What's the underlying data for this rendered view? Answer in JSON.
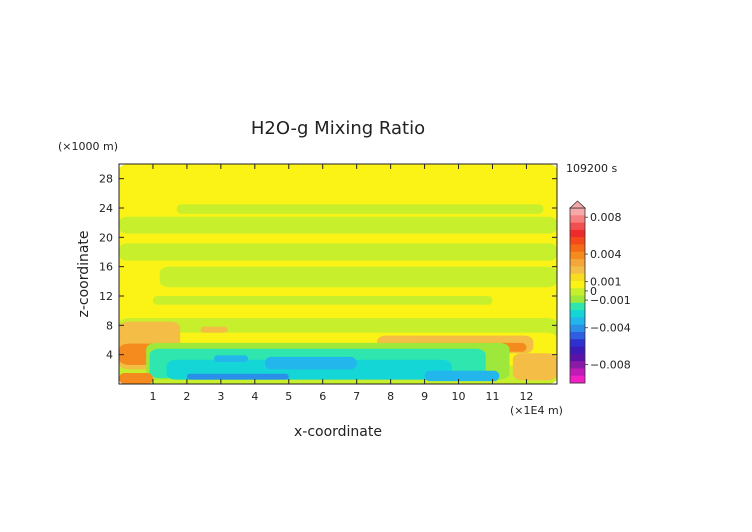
{
  "chart_data": {
    "type": "heatmap",
    "title": "H2O-g Mixing Ratio",
    "xlabel": "x-coordinate",
    "ylabel": "z-coordinate",
    "x_unit_label": "(×1E4 m)",
    "y_unit_label": "(×1000 m)",
    "time_label": "109200 s",
    "xlim": [
      0,
      12.9
    ],
    "ylim": [
      0,
      30
    ],
    "x_ticks": [
      1,
      2,
      3,
      4,
      5,
      6,
      7,
      8,
      9,
      10,
      11,
      12
    ],
    "y_ticks": [
      4,
      8,
      12,
      16,
      20,
      24,
      28
    ],
    "colorbar": {
      "labels": [
        {
          "value": 0.008,
          "text": "0.008"
        },
        {
          "value": 0.004,
          "text": "0.004"
        },
        {
          "value": 0.001,
          "text": "0.001"
        },
        {
          "value": 0,
          "text": "0"
        },
        {
          "value": -0.001,
          "text": "−0.001"
        },
        {
          "value": -0.004,
          "text": "−0.004"
        },
        {
          "value": -0.008,
          "text": "−0.008"
        }
      ],
      "levels": [
        {
          "value": 0.009,
          "color": "#f7a9a9"
        },
        {
          "value": 0.008,
          "color": "#f58080"
        },
        {
          "value": 0.007,
          "color": "#f25050"
        },
        {
          "value": 0.006,
          "color": "#ee2b2b"
        },
        {
          "value": 0.005,
          "color": "#f44a1a"
        },
        {
          "value": 0.004,
          "color": "#f56a14"
        },
        {
          "value": 0.003,
          "color": "#f58a1e"
        },
        {
          "value": 0.002,
          "color": "#f4a63a"
        },
        {
          "value": 0.0015,
          "color": "#f4bd45"
        },
        {
          "value": 0.001,
          "color": "#f8dc20"
        },
        {
          "value": 0.0005,
          "color": "#fbf316"
        },
        {
          "value": 0,
          "color": "#c7ef2c"
        },
        {
          "value": -0.0005,
          "color": "#9de83a"
        },
        {
          "value": -0.001,
          "color": "#2ee6ae"
        },
        {
          "value": -0.0015,
          "color": "#15d6d6"
        },
        {
          "value": -0.002,
          "color": "#22b6ec"
        },
        {
          "value": -0.003,
          "color": "#2a8fe8"
        },
        {
          "value": -0.004,
          "color": "#2f5fe0"
        },
        {
          "value": -0.005,
          "color": "#2f30d0"
        },
        {
          "value": -0.006,
          "color": "#3b1ab8"
        },
        {
          "value": -0.007,
          "color": "#5a13a8"
        },
        {
          "value": -0.008,
          "color": "#8a1aa8"
        },
        {
          "value": -0.009,
          "color": "#c21ab8"
        },
        {
          "value": -0.01,
          "color": "#f11fc6"
        }
      ]
    },
    "regions": [
      {
        "shape": "band",
        "x": [
          0,
          12.9
        ],
        "z": [
          0,
          30
        ],
        "value": 0.0005
      },
      {
        "shape": "band",
        "x": [
          1.7,
          12.5
        ],
        "z": [
          23.2,
          24.5
        ],
        "value": 0
      },
      {
        "shape": "band",
        "x": [
          0,
          12.9
        ],
        "z": [
          20.5,
          22.8
        ],
        "value": 0
      },
      {
        "shape": "band",
        "x": [
          0,
          12.9
        ],
        "z": [
          16.8,
          19.2
        ],
        "value": 0
      },
      {
        "shape": "band",
        "x": [
          1.2,
          12.9
        ],
        "z": [
          13.2,
          16.0
        ],
        "value": 0
      },
      {
        "shape": "band",
        "x": [
          0,
          12.9
        ],
        "z": [
          0,
          9.0
        ],
        "value": 0
      },
      {
        "shape": "band",
        "x": [
          1.0,
          11.0
        ],
        "z": [
          10.8,
          12.0
        ],
        "value": 0
      },
      {
        "shape": "band",
        "x": [
          1.5,
          12.9
        ],
        "z": [
          2.5,
          7.0
        ],
        "value": 0.0005
      },
      {
        "shape": "band",
        "x": [
          0,
          1.8
        ],
        "z": [
          2.0,
          8.5
        ],
        "value": 0.0015
      },
      {
        "shape": "band",
        "x": [
          0,
          2.6
        ],
        "z": [
          2.6,
          5.5
        ],
        "value": 0.003
      },
      {
        "shape": "band",
        "x": [
          2.4,
          3.2
        ],
        "z": [
          7.0,
          7.8
        ],
        "value": 0.0015
      },
      {
        "shape": "band",
        "x": [
          7.6,
          12.2
        ],
        "z": [
          4.2,
          6.6
        ],
        "value": 0.0015
      },
      {
        "shape": "band",
        "x": [
          8.6,
          12.0
        ],
        "z": [
          4.4,
          5.6
        ],
        "value": 0.003
      },
      {
        "shape": "band",
        "x": [
          0.8,
          11.5
        ],
        "z": [
          0.6,
          5.6
        ],
        "value": -0.0005
      },
      {
        "shape": "band",
        "x": [
          0.9,
          10.8
        ],
        "z": [
          0.8,
          4.8
        ],
        "value": -0.001
      },
      {
        "shape": "band",
        "x": [
          1.4,
          9.8
        ],
        "z": [
          0.6,
          3.3
        ],
        "value": -0.0015
      },
      {
        "shape": "band",
        "x": [
          2.8,
          3.8
        ],
        "z": [
          3.0,
          3.9
        ],
        "value": -0.002
      },
      {
        "shape": "band",
        "x": [
          4.3,
          7.0
        ],
        "z": [
          2.0,
          3.7
        ],
        "value": -0.002
      },
      {
        "shape": "band",
        "x": [
          2.0,
          5.0
        ],
        "z": [
          0.6,
          1.4
        ],
        "value": -0.003
      },
      {
        "shape": "band",
        "x": [
          9.0,
          11.2
        ],
        "z": [
          0.4,
          1.8
        ],
        "value": -0.002
      },
      {
        "shape": "band",
        "x": [
          0,
          1.0
        ],
        "z": [
          0,
          1.5
        ],
        "value": 0.003
      },
      {
        "shape": "band",
        "x": [
          11.6,
          12.9
        ],
        "z": [
          0.5,
          4.2
        ],
        "value": 0.0015
      }
    ]
  }
}
